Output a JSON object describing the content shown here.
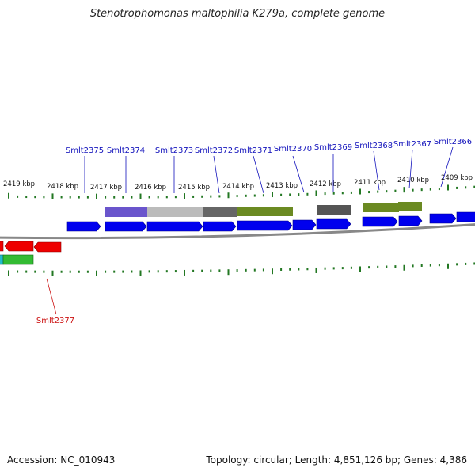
{
  "title": "Stenotrophomonas maltophilia K279a, complete genome",
  "accession": "Accession: NC_010943",
  "summary": "Topology: circular; Length: 4,851,126 bp; Genes: 4,386",
  "colors": {
    "cds_blue": "#0000ee",
    "cds_red": "#ee0000",
    "cds_green": "#33bb33",
    "cds_cyan": "#22bbcc",
    "label_blue": "#1111bb",
    "label_red": "#cc1111",
    "tick_green": "#227722",
    "backbone": "#888888"
  },
  "kbp_ticks": [
    {
      "label": "2419 kbp"
    },
    {
      "label": "2418 kbp"
    },
    {
      "label": "2417 kbp"
    },
    {
      "label": "2416 kbp"
    },
    {
      "label": "2415 kbp"
    },
    {
      "label": "2414 kbp"
    },
    {
      "label": "2413 kbp"
    },
    {
      "label": "2412 kbp"
    },
    {
      "label": "2411 kbp"
    },
    {
      "label": "2410 kbp"
    },
    {
      "label": "2409 kbp"
    }
  ],
  "gene_labels": [
    {
      "label": "Smlt2375"
    },
    {
      "label": "Smlt2374"
    },
    {
      "label": "Smlt2373"
    },
    {
      "label": "Smlt2372"
    },
    {
      "label": "Smlt2371"
    },
    {
      "label": "Smlt2370"
    },
    {
      "label": "Smlt2369"
    },
    {
      "label": "Smlt2368"
    },
    {
      "label": "Smlt2367"
    },
    {
      "label": "Smlt2366"
    },
    {
      "label": "Smlt2377"
    }
  ]
}
